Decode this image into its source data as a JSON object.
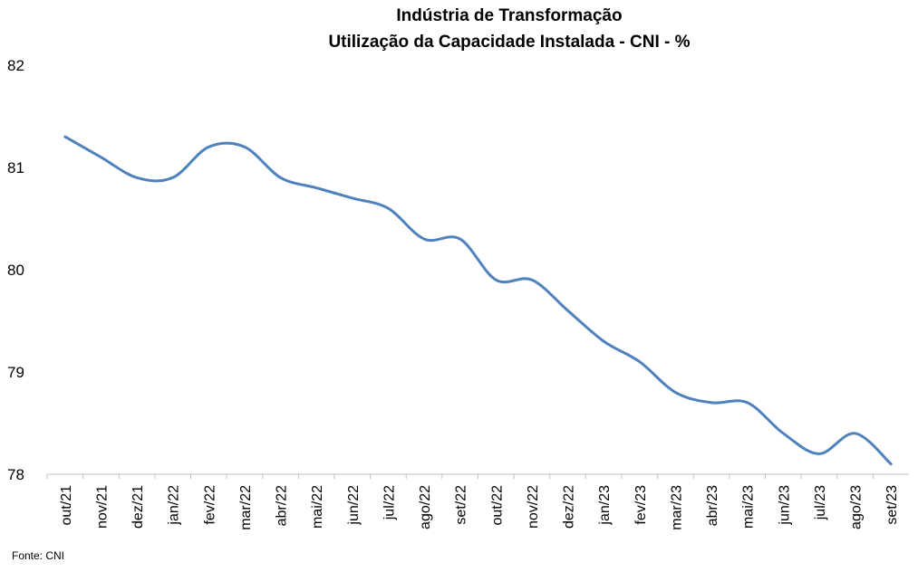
{
  "chart_data": {
    "type": "line",
    "title": "Indústria de Transformação",
    "subtitle": "Utilização da Capacidade Instalada - CNI - %",
    "xlabel": "",
    "ylabel": "",
    "categories": [
      "out/21",
      "nov/21",
      "dez/21",
      "jan/22",
      "fev/22",
      "mar/22",
      "abr/22",
      "mai/22",
      "jun/22",
      "jul/22",
      "ago/22",
      "set/22",
      "out/22",
      "nov/22",
      "dez/22",
      "jan/23",
      "fev/23",
      "mar/23",
      "abr/23",
      "mai/23",
      "jun/23",
      "jul/23",
      "ago/23",
      "set/23"
    ],
    "series": [
      {
        "values": [
          81.3,
          81.1,
          80.9,
          80.9,
          81.2,
          81.2,
          80.9,
          80.8,
          80.7,
          80.6,
          80.3,
          80.3,
          79.9,
          79.9,
          79.6,
          79.3,
          79.1,
          78.8,
          78.7,
          78.7,
          78.4,
          78.2,
          78.4,
          78.1
        ],
        "color": "#4f81bd"
      }
    ],
    "yticks": [
      "78",
      "79",
      "80",
      "81",
      "82"
    ],
    "ylim": [
      78,
      82
    ],
    "grid": false,
    "legend": "none"
  },
  "source": "Fonte: CNI"
}
